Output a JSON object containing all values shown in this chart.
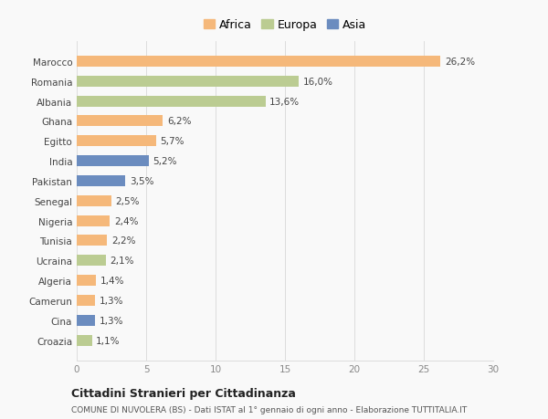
{
  "countries": [
    "Marocco",
    "Romania",
    "Albania",
    "Ghana",
    "Egitto",
    "India",
    "Pakistan",
    "Senegal",
    "Nigeria",
    "Tunisia",
    "Ucraina",
    "Algeria",
    "Camerun",
    "Cina",
    "Croazia"
  ],
  "values": [
    26.2,
    16.0,
    13.6,
    6.2,
    5.7,
    5.2,
    3.5,
    2.5,
    2.4,
    2.2,
    2.1,
    1.4,
    1.3,
    1.3,
    1.1
  ],
  "labels": [
    "26,2%",
    "16,0%",
    "13,6%",
    "6,2%",
    "5,7%",
    "5,2%",
    "3,5%",
    "2,5%",
    "2,4%",
    "2,2%",
    "2,1%",
    "1,4%",
    "1,3%",
    "1,3%",
    "1,1%"
  ],
  "continents": [
    "Africa",
    "Europa",
    "Europa",
    "Africa",
    "Africa",
    "Asia",
    "Asia",
    "Africa",
    "Africa",
    "Africa",
    "Europa",
    "Africa",
    "Africa",
    "Asia",
    "Europa"
  ],
  "colors": {
    "Africa": "#F5B87A",
    "Europa": "#BBCC92",
    "Asia": "#6B8CBF"
  },
  "legend_labels": [
    "Africa",
    "Europa",
    "Asia"
  ],
  "xlim": [
    0,
    30
  ],
  "xticks": [
    0,
    5,
    10,
    15,
    20,
    25,
    30
  ],
  "title": "Cittadini Stranieri per Cittadinanza",
  "subtitle": "COMUNE DI NUVOLERA (BS) - Dati ISTAT al 1° gennaio di ogni anno - Elaborazione TUTTITALIA.IT",
  "background_color": "#f9f9f9",
  "grid_color": "#dddddd",
  "bar_height": 0.55
}
